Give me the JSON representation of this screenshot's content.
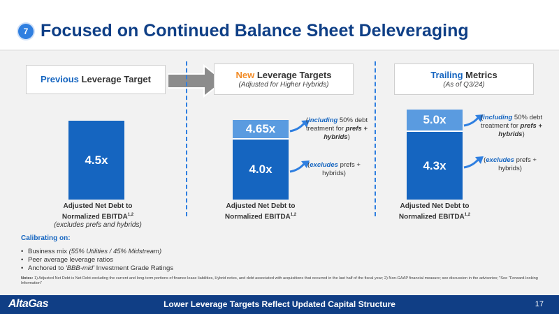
{
  "slide_number": "7",
  "title": "Focused on Continued Balance Sheet Deleveraging",
  "columns": [
    {
      "heading_highlight": "Previous",
      "heading_rest": " Leverage Target",
      "subheading": "",
      "bars": [
        {
          "label": "4.5x",
          "value": 4.5
        }
      ],
      "caption_line1": "Adjusted Net Debt to",
      "caption_line2": "Normalized EBITDA",
      "caption_sup": "1,2",
      "caption_line3": "(excludes prefs and hybrids)"
    },
    {
      "heading_highlight": "New",
      "heading_rest": " Leverage Targets",
      "subheading": "(Adjusted for Higher Hybrids)",
      "bars": [
        {
          "label": "4.0x",
          "value": 4.0
        },
        {
          "label": "4.65x",
          "value": 4.65
        }
      ],
      "caption_line1": "Adjusted Net Debt to",
      "caption_line2": "Normalized EBITDA",
      "caption_sup": "1,2",
      "note_top": {
        "pre": "(",
        "emph": "including",
        "mid": " 50% debt treatment for ",
        "bold": "prefs + hybrids",
        "post": ")"
      },
      "note_bottom": {
        "pre": "(",
        "emph": "excludes",
        "post": " prefs + hybrids)"
      }
    },
    {
      "heading_highlight": "Trailing",
      "heading_rest": " Metrics",
      "subheading": "(As of Q3/24)",
      "bars": [
        {
          "label": "4.3x",
          "value": 4.3
        },
        {
          "label": "5.0x",
          "value": 5.0
        }
      ],
      "caption_line1": "Adjusted Net Debt to",
      "caption_line2": "Normalized EBITDA",
      "caption_sup": "1,2",
      "note_top": {
        "pre": "(",
        "emph": "including",
        "mid": " 50% debt treatment for ",
        "bold": "prefs + hybrids",
        "post": ")"
      },
      "note_bottom": {
        "pre": "(",
        "emph": "excludes",
        "post": " prefs + hybrids)"
      }
    }
  ],
  "calibrating": {
    "heading": "Calibrating on:",
    "items": [
      {
        "text": "Business mix ",
        "italic": "(55% Utilities / 45% Midstream)"
      },
      {
        "text": "Peer average leverage ratios",
        "italic": ""
      },
      {
        "text": "Anchored to ",
        "italic": "'BBB-mid'",
        "text2": " Investment Grade Ratings"
      }
    ]
  },
  "notes": {
    "label": "Notes:",
    "text": " 1) Adjusted Net Debt is Net Debt excluding the current and long-term portions of finance lease liabilities, Hybrid notes, and debt associated with acquisitions that occurred in the last half of the fiscal year; 2) Non-GAAP financial measure; see discussion in the advisories; \"See \"Forward-looking Information\""
  },
  "footer": {
    "logo": "AltaGas",
    "text": "Lower Leverage Targets Reflect Updated Capital Structure",
    "page": "17"
  },
  "colors": {
    "navy": "#0f3f86",
    "blue": "#1565c0",
    "light_blue": "#5a9be0",
    "orange": "#f28c28"
  }
}
